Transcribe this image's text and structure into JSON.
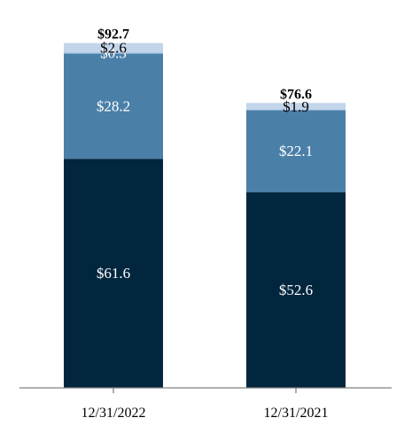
{
  "chart_data": {
    "type": "bar",
    "stacked": true,
    "categories": [
      "12/31/2022",
      "12/31/2021"
    ],
    "series": [
      {
        "values": [
          61.6,
          52.6
        ],
        "labels": [
          "$61.6",
          "$52.6"
        ],
        "color": "#03263f",
        "label_color": "#ffffff"
      },
      {
        "values": [
          28.2,
          22.1
        ],
        "labels": [
          "$28.2",
          "$22.1"
        ],
        "color": "#4a7fa8",
        "label_color": "#ffffff"
      },
      {
        "values": [
          0.3,
          0
        ],
        "labels": [
          "$0.3",
          ""
        ],
        "color": "#7ea7cd",
        "label_color": "#ffffff"
      },
      {
        "values": [
          2.6,
          1.9
        ],
        "labels": [
          "$2.6",
          "$1.9"
        ],
        "color": "#c3d5ea",
        "label_color": "#000000"
      }
    ],
    "totals": [
      92.7,
      76.6
    ],
    "total_labels": [
      "$92.7",
      "$76.6"
    ],
    "title": "",
    "xlabel": "",
    "ylabel": "",
    "ylim": [
      0,
      100
    ],
    "grid": false,
    "legend": "none",
    "axis_color": "#808080"
  }
}
